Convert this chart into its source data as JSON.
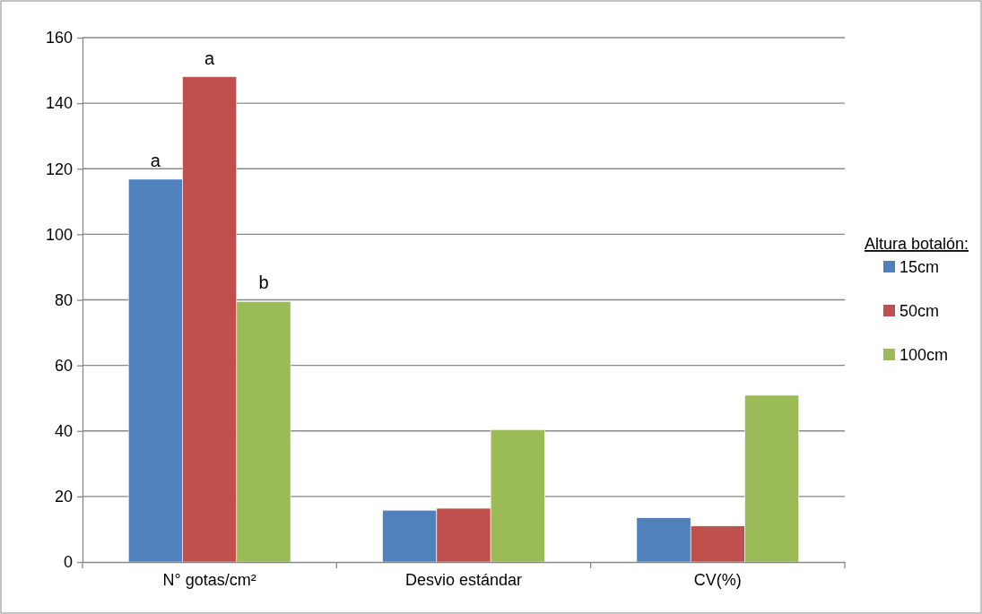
{
  "chart_data": {
    "type": "bar",
    "categories": [
      "N° gotas/cm²",
      "Desvio estándar",
      "CV(%)"
    ],
    "series": [
      {
        "name": "15cm",
        "color": "#4f81bd",
        "values": [
          116.8,
          15.8,
          13.5
        ]
      },
      {
        "name": "50cm",
        "color": "#c0504d",
        "values": [
          148.1,
          16.4,
          11.0
        ]
      },
      {
        "name": "100cm",
        "color": "#9bbb59",
        "values": [
          79.5,
          40.4,
          50.9
        ]
      }
    ],
    "ylim": [
      0,
      160
    ],
    "yticks": [
      0,
      20,
      40,
      60,
      80,
      100,
      120,
      140,
      160
    ],
    "grid": "y",
    "legend": "right",
    "legend_title": "Altura botalón:",
    "annotations": [
      "a",
      "a",
      "b"
    ]
  }
}
